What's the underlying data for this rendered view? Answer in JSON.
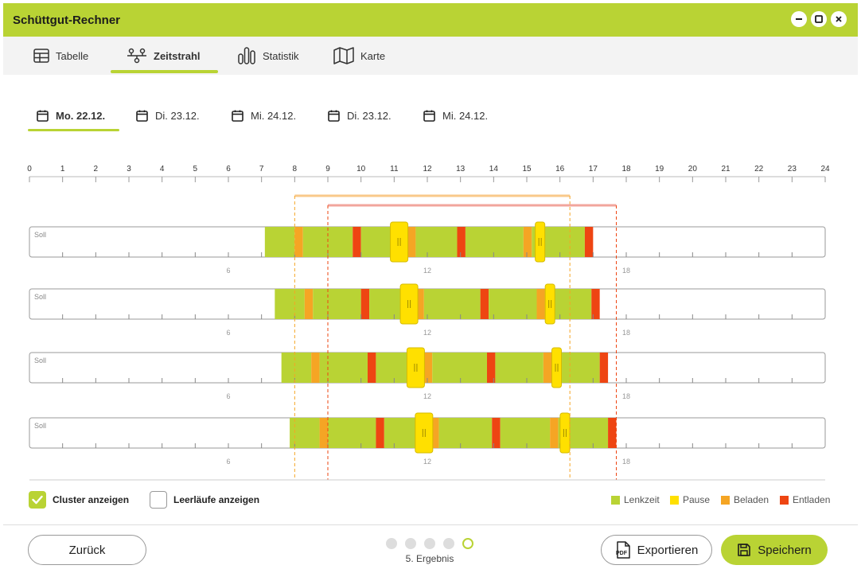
{
  "app": {
    "title": "Schüttgut-Rechner"
  },
  "nav": {
    "tabs": [
      {
        "label": "Tabelle",
        "icon": "table-icon"
      },
      {
        "label": "Zeitstrahl",
        "icon": "timeline-icon",
        "active": true
      },
      {
        "label": "Statistik",
        "icon": "chart-icon"
      },
      {
        "label": "Karte",
        "icon": "map-icon"
      }
    ]
  },
  "days": [
    {
      "label": "Mo. 22.12.",
      "active": true
    },
    {
      "label": "Di. 23.12."
    },
    {
      "label": "Mi. 24.12."
    },
    {
      "label": "Di. 23.12."
    },
    {
      "label": "Mi. 24.12."
    }
  ],
  "timeline": {
    "hours": [
      "0",
      "1",
      "2",
      "3",
      "4",
      "5",
      "6",
      "7",
      "8",
      "9",
      "10",
      "11",
      "12",
      "13",
      "14",
      "15",
      "16",
      "17",
      "18",
      "19",
      "20",
      "21",
      "22",
      "23",
      "24"
    ],
    "row_label": "Soll",
    "row_ticks": [
      "6",
      "12",
      "18"
    ],
    "clusters": [
      {
        "start": 8.0,
        "end": 16.3,
        "color": "#f9c98a"
      },
      {
        "start": 9.0,
        "end": 17.7,
        "color": "#f2a59c"
      }
    ],
    "rows": [
      {
        "segments": [
          {
            "t": "L",
            "s": 7.1,
            "e": 8.0
          },
          {
            "t": "B",
            "s": 8.0,
            "e": 8.25
          },
          {
            "t": "L",
            "s": 8.25,
            "e": 9.75
          },
          {
            "t": "E",
            "s": 9.75,
            "e": 10.0
          },
          {
            "t": "L",
            "s": 10.0,
            "e": 11.4
          },
          {
            "t": "B",
            "s": 11.4,
            "e": 11.65
          },
          {
            "t": "L",
            "s": 11.65,
            "e": 12.9
          },
          {
            "t": "E",
            "s": 12.9,
            "e": 13.15
          },
          {
            "t": "L",
            "s": 13.15,
            "e": 14.9
          },
          {
            "t": "B",
            "s": 14.9,
            "e": 15.15
          },
          {
            "t": "L",
            "s": 15.15,
            "e": 16.75
          },
          {
            "t": "E",
            "s": 16.75,
            "e": 17.0
          }
        ],
        "pauses": [
          11.15,
          15.4
        ]
      },
      {
        "segments": [
          {
            "t": "L",
            "s": 7.4,
            "e": 8.3
          },
          {
            "t": "B",
            "s": 8.3,
            "e": 8.55
          },
          {
            "t": "L",
            "s": 8.55,
            "e": 10.0
          },
          {
            "t": "E",
            "s": 10.0,
            "e": 10.25
          },
          {
            "t": "L",
            "s": 10.25,
            "e": 11.65
          },
          {
            "t": "B",
            "s": 11.65,
            "e": 11.9
          },
          {
            "t": "L",
            "s": 11.9,
            "e": 13.6
          },
          {
            "t": "E",
            "s": 13.6,
            "e": 13.85
          },
          {
            "t": "L",
            "s": 13.85,
            "e": 15.3
          },
          {
            "t": "B",
            "s": 15.3,
            "e": 15.55
          },
          {
            "t": "L",
            "s": 15.55,
            "e": 16.95
          },
          {
            "t": "E",
            "s": 16.95,
            "e": 17.2
          }
        ],
        "pauses": [
          11.45,
          15.7
        ]
      },
      {
        "segments": [
          {
            "t": "L",
            "s": 7.6,
            "e": 8.5
          },
          {
            "t": "B",
            "s": 8.5,
            "e": 8.75
          },
          {
            "t": "L",
            "s": 8.75,
            "e": 10.2
          },
          {
            "t": "E",
            "s": 10.2,
            "e": 10.45
          },
          {
            "t": "L",
            "s": 10.45,
            "e": 11.9
          },
          {
            "t": "B",
            "s": 11.9,
            "e": 12.15
          },
          {
            "t": "L",
            "s": 12.15,
            "e": 13.8
          },
          {
            "t": "E",
            "s": 13.8,
            "e": 14.05
          },
          {
            "t": "L",
            "s": 14.05,
            "e": 15.5
          },
          {
            "t": "B",
            "s": 15.5,
            "e": 15.75
          },
          {
            "t": "L",
            "s": 15.75,
            "e": 17.2
          },
          {
            "t": "E",
            "s": 17.2,
            "e": 17.45
          }
        ],
        "pauses": [
          11.65,
          15.9
        ]
      },
      {
        "segments": [
          {
            "t": "L",
            "s": 7.85,
            "e": 8.75
          },
          {
            "t": "B",
            "s": 8.75,
            "e": 9.0
          },
          {
            "t": "L",
            "s": 9.0,
            "e": 10.45
          },
          {
            "t": "E",
            "s": 10.45,
            "e": 10.7
          },
          {
            "t": "L",
            "s": 10.7,
            "e": 12.1
          },
          {
            "t": "B",
            "s": 12.1,
            "e": 12.35
          },
          {
            "t": "L",
            "s": 12.35,
            "e": 13.95
          },
          {
            "t": "E",
            "s": 13.95,
            "e": 14.2
          },
          {
            "t": "L",
            "s": 14.2,
            "e": 15.7
          },
          {
            "t": "B",
            "s": 15.7,
            "e": 15.95
          },
          {
            "t": "L",
            "s": 15.95,
            "e": 17.45
          },
          {
            "t": "E",
            "s": 17.45,
            "e": 17.7
          }
        ],
        "pauses": [
          11.9,
          16.15
        ]
      }
    ]
  },
  "colors": {
    "accent": "#b9d334",
    "lenkzeit": "#b9d334",
    "pause": "#ffe000",
    "beladen": "#f5a524",
    "entladen": "#ee4512"
  },
  "options": {
    "cluster_label": "Cluster anzeigen",
    "cluster_checked": true,
    "idle_label": "Leerläufe anzeigen",
    "idle_checked": false
  },
  "legend": {
    "lenkzeit": "Lenkzeit",
    "pause": "Pause",
    "beladen": "Beladen",
    "entladen": "Entladen"
  },
  "footer": {
    "back_label": "Zurück",
    "export_label": "Exportieren",
    "save_label": "Speichern",
    "step_label": "5. Ergebnis",
    "step_current": 5,
    "step_total": 5
  }
}
